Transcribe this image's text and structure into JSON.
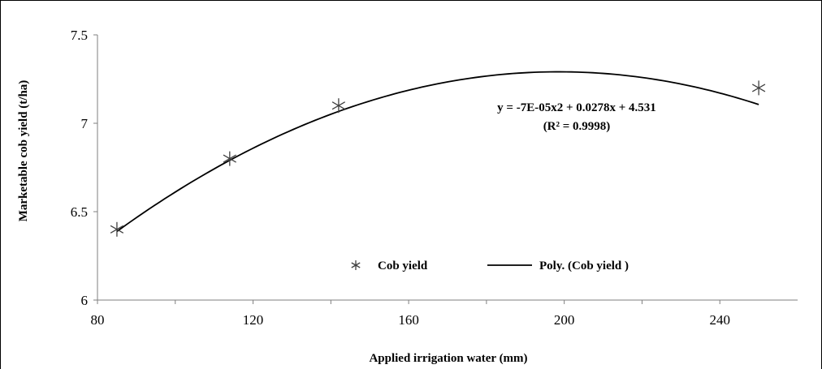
{
  "chart_data": {
    "type": "scatter",
    "xlabel": "Applied irrigation water (mm)",
    "ylabel": "Marketable cob yield (t/ha)",
    "xlim": [
      80,
      260
    ],
    "ylim": [
      6,
      7.5
    ],
    "x_ticks": [
      80,
      120,
      160,
      200,
      240
    ],
    "y_ticks": [
      6,
      6.5,
      7,
      7.5
    ],
    "x_tick_labels": [
      "80",
      "120",
      "160",
      "200",
      "240"
    ],
    "y_tick_labels": [
      "6",
      "6.5",
      "7",
      "7.5"
    ],
    "grid": false,
    "legend_position": "bottom-center",
    "series": [
      {
        "name": "Cob yield",
        "marker": "asterisk",
        "x": [
          85,
          114,
          142,
          250
        ],
        "y": [
          6.4,
          6.8,
          7.1,
          7.2
        ]
      }
    ],
    "trendline": {
      "name": "Poly. (Cob yield )",
      "type": "polynomial",
      "coefficients": [
        -7e-05,
        0.0278,
        4.531
      ],
      "x_range": [
        85,
        250
      ]
    },
    "annotations": [
      "y = -7E-05x2 + 0.0278x + 4.531",
      "(R² = 0.9998)"
    ],
    "colors": {
      "marker": "#404040",
      "trendline": "#000000",
      "axis": "#7f7f7f"
    }
  }
}
